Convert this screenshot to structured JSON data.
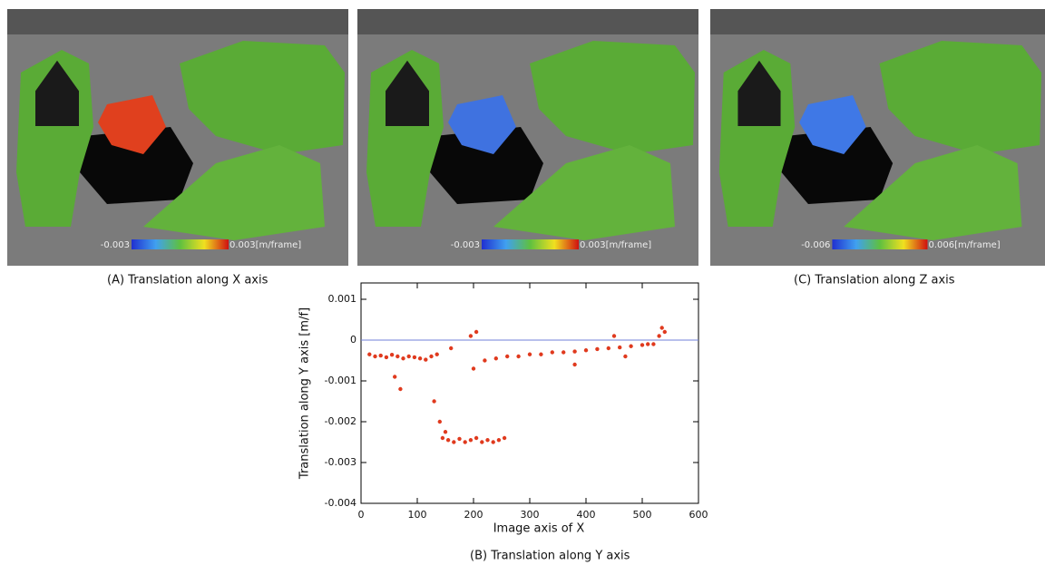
{
  "panels": [
    {
      "caption": "(A) Translation along X axis",
      "colorbar_min": "-0.003",
      "colorbar_max": "0.003[m/frame]",
      "object_color": "#e0401e"
    },
    {
      "caption": "(B) Translation along Y axis",
      "colorbar_min": "-0.003",
      "colorbar_max": "0.003[m/frame]",
      "object_color": "#3f72e0"
    },
    {
      "caption": "(C) Translation along Z axis",
      "colorbar_min": "-0.006",
      "colorbar_max": "0.006[m/frame]",
      "object_color": "#3f78e6"
    }
  ],
  "chart_data": {
    "type": "scatter",
    "x_label": "Image axis of X",
    "y_label": "Translation along Y axis [m/f]",
    "xlim": [
      0,
      600
    ],
    "xticks": [
      0,
      100,
      200,
      300,
      400,
      500,
      600
    ],
    "ylim": [
      -0.004,
      0.0014
    ],
    "yticks": [
      0.001,
      0,
      -0.001,
      -0.002,
      -0.003,
      -0.004
    ],
    "reference_line": {
      "value": 0,
      "color": "#7080d8"
    },
    "series": [
      {
        "color": "#e03a1e",
        "x": [
          15,
          25,
          35,
          45,
          55,
          65,
          75,
          85,
          95,
          105,
          115,
          125,
          135,
          145,
          155,
          165,
          175,
          185,
          195,
          205,
          215,
          225,
          235,
          245,
          255,
          60,
          70,
          130,
          140,
          150,
          160,
          195,
          200,
          205,
          220,
          240,
          260,
          280,
          300,
          320,
          340,
          360,
          380,
          400,
          420,
          440,
          460,
          480,
          500,
          510,
          520,
          530,
          535,
          540,
          380,
          450,
          470
        ],
        "values": [
          -0.00035,
          -0.0004,
          -0.00038,
          -0.00042,
          -0.00036,
          -0.0004,
          -0.00045,
          -0.0004,
          -0.00042,
          -0.00045,
          -0.00048,
          -0.0004,
          -0.00035,
          -0.0024,
          -0.00245,
          -0.0025,
          -0.00242,
          -0.0025,
          -0.00245,
          -0.0024,
          -0.0025,
          -0.00245,
          -0.0025,
          -0.00245,
          -0.0024,
          -0.0009,
          -0.0012,
          -0.0015,
          -0.002,
          -0.00225,
          -0.0002,
          0.0001,
          -0.0007,
          0.0002,
          -0.0005,
          -0.00045,
          -0.0004,
          -0.0004,
          -0.00035,
          -0.00035,
          -0.0003,
          -0.0003,
          -0.00028,
          -0.00025,
          -0.00022,
          -0.0002,
          -0.00018,
          -0.00015,
          -0.00012,
          -0.0001,
          -0.0001,
          0.0001,
          0.0003,
          0.0002,
          -0.0006,
          0.0001,
          -0.0004
        ]
      }
    ]
  }
}
